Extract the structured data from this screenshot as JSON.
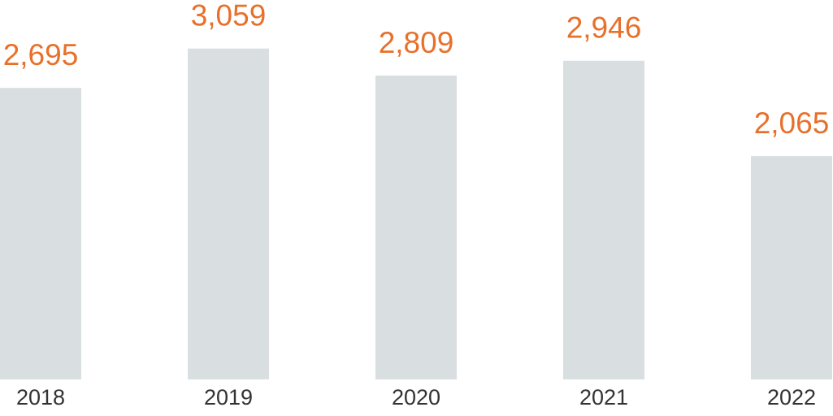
{
  "chart_data": {
    "type": "bar",
    "categories": [
      "2018",
      "2019",
      "2020",
      "2021",
      "2022"
    ],
    "values": [
      2695,
      3059,
      2809,
      2946,
      2065
    ],
    "value_labels": [
      "2,695",
      "3,059",
      "2,809",
      "2,946",
      "2,065"
    ],
    "color": "#d9dee0",
    "label_color": "#e8702a",
    "ylim": [
      0,
      3500
    ]
  }
}
